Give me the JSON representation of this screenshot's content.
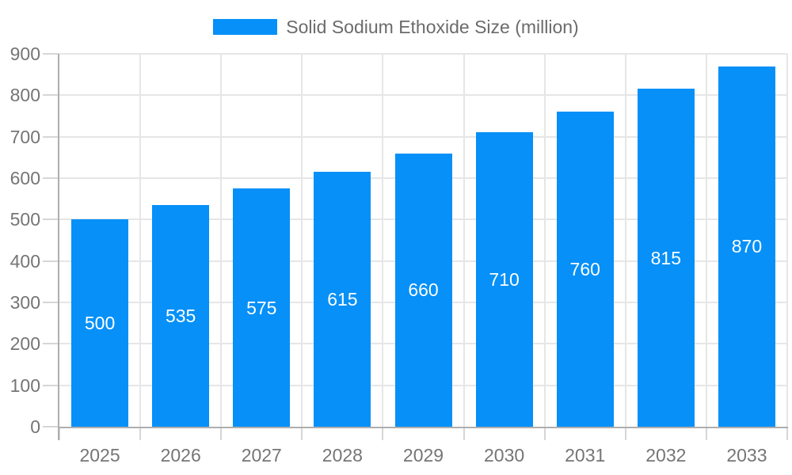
{
  "legend": {
    "label": "Solid Sodium Ethoxide Size (million)"
  },
  "colors": {
    "background": "#ffffff",
    "bar": "#0690f8",
    "grid": "#e6e6e6",
    "axis": "#aeaeae",
    "tick": "#d6d6d6",
    "axis_label": "#757575",
    "legend_label": "#6b6b6b",
    "bar_label": "#ffffff"
  },
  "chart_data": {
    "type": "bar",
    "title": "Solid Sodium Ethoxide Size (million)",
    "categories": [
      "2025",
      "2026",
      "2027",
      "2028",
      "2029",
      "2030",
      "2031",
      "2032",
      "2033"
    ],
    "values": [
      500,
      535,
      575,
      615,
      660,
      710,
      760,
      815,
      870
    ],
    "series": [
      {
        "name": "Solid Sodium Ethoxide Size (million)",
        "values": [
          500,
          535,
          575,
          615,
          660,
          710,
          760,
          815,
          870
        ]
      }
    ],
    "xlabel": "",
    "ylabel": "",
    "ylim": [
      0,
      900
    ],
    "ytick_step": 100,
    "yticks": [
      0,
      100,
      200,
      300,
      400,
      500,
      600,
      700,
      800,
      900
    ],
    "grid": "on",
    "legend_position": "top-center",
    "bar_value_labels": "inside-center"
  }
}
